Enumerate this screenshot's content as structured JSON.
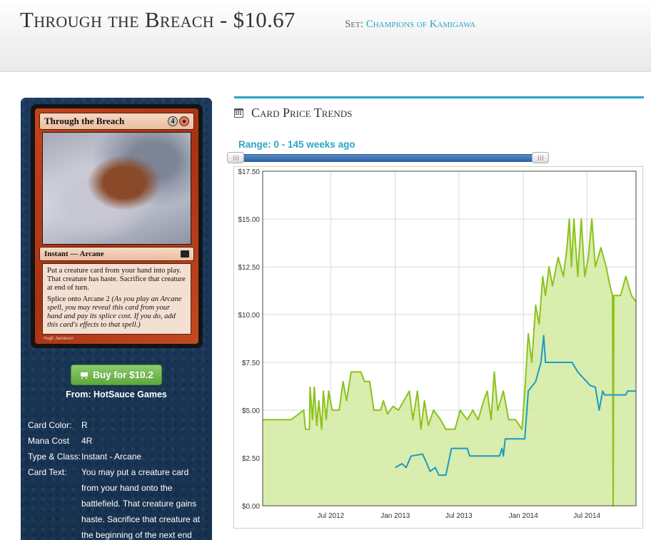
{
  "header": {
    "title": "Through the Breach - $10.67",
    "set_label": "Set:",
    "set_name": "Champions of Kamigawa"
  },
  "card": {
    "name": "Through the Breach",
    "mana_generic": "4",
    "mana_symbol": "red-mana-icon",
    "type_line": "Instant — Arcane",
    "rules_1": "Put a creature card from your hand into play. That creature has haste. Sacrifice that creature at end of turn.",
    "splice_label": "Splice onto Arcane",
    "splice_cost": "2",
    "reminder": "(As you play an Arcane spell, you may reveal this card from your hand and pay its splice cost. If you do, add this card's effects to that spell.)",
    "artist": "Hugh Jamieson"
  },
  "buy": {
    "label": "Buy for $10.2",
    "icon": "cart-icon",
    "vendor": "From: HotSauce Games"
  },
  "details": [
    {
      "label": "Card Color:",
      "value": "R"
    },
    {
      "label": "Mana Cost",
      "value": "4R"
    },
    {
      "label": "Type & Class:",
      "value": "Instant - Arcane"
    },
    {
      "label": "Card Text:",
      "value": "You may put a creature card from your hand onto the battlefield. That creature gains haste. Sacrifice that creature at the beginning of the next end"
    }
  ],
  "trends": {
    "title": "Card Price Trends",
    "icon": "calendar-icon",
    "range_label": "Range: 0 - 145 weeks ago"
  },
  "colors": {
    "accent": "#29a2c4",
    "green_series": "#8cc21c",
    "green_fill": "#d2eaa0",
    "blue_series": "#1b9bc4"
  },
  "chart_data": {
    "type": "area",
    "y_ticks": [
      "$0.00",
      "$2.50",
      "$5.00",
      "$7.50",
      "$10.00",
      "$12.50",
      "$15.00",
      "$17.50"
    ],
    "x_ticks": [
      "Jul 2012",
      "Jan 2013",
      "Jul 2013",
      "Jan 2014",
      "Jul 2014"
    ],
    "x_tick_dates": [
      "2012-07-01",
      "2013-01-01",
      "2013-07-01",
      "2014-01-01",
      "2014-07-01"
    ],
    "ylim": [
      0,
      17.5
    ],
    "xlim": [
      "2011-12-20",
      "2014-11-18"
    ],
    "grid": true,
    "series": [
      {
        "color": "#8cc21c",
        "fill": "#d2eaa0",
        "points": [
          [
            "2011-12-20",
            4.5
          ],
          [
            "2012-03-10",
            4.5
          ],
          [
            "2012-04-15",
            5.0
          ],
          [
            "2012-04-20",
            4.0
          ],
          [
            "2012-05-01",
            4.0
          ],
          [
            "2012-05-03",
            6.2
          ],
          [
            "2012-05-10",
            4.5
          ],
          [
            "2012-05-15",
            6.2
          ],
          [
            "2012-05-22",
            4.2
          ],
          [
            "2012-05-28",
            5.5
          ],
          [
            "2012-06-05",
            4.0
          ],
          [
            "2012-06-10",
            6.0
          ],
          [
            "2012-06-18",
            4.5
          ],
          [
            "2012-06-25",
            6.0
          ],
          [
            "2012-07-05",
            5.0
          ],
          [
            "2012-07-25",
            5.0
          ],
          [
            "2012-08-05",
            6.5
          ],
          [
            "2012-08-15",
            5.5
          ],
          [
            "2012-08-28",
            7.0
          ],
          [
            "2012-09-25",
            7.0
          ],
          [
            "2012-10-05",
            6.5
          ],
          [
            "2012-10-20",
            6.5
          ],
          [
            "2012-11-01",
            5.0
          ],
          [
            "2012-11-20",
            5.0
          ],
          [
            "2012-11-28",
            5.5
          ],
          [
            "2012-12-10",
            4.8
          ],
          [
            "2012-12-25",
            5.2
          ],
          [
            "2013-01-10",
            5.0
          ],
          [
            "2013-02-10",
            6.0
          ],
          [
            "2013-02-20",
            4.5
          ],
          [
            "2013-03-05",
            6.0
          ],
          [
            "2013-03-15",
            4.0
          ],
          [
            "2013-03-25",
            5.5
          ],
          [
            "2013-04-05",
            4.2
          ],
          [
            "2013-04-20",
            5.0
          ],
          [
            "2013-05-10",
            4.5
          ],
          [
            "2013-05-25",
            4.0
          ],
          [
            "2013-06-20",
            4.0
          ],
          [
            "2013-07-05",
            5.0
          ],
          [
            "2013-07-25",
            4.5
          ],
          [
            "2013-08-10",
            5.0
          ],
          [
            "2013-08-25",
            4.5
          ],
          [
            "2013-09-10",
            5.5
          ],
          [
            "2013-09-20",
            6.0
          ],
          [
            "2013-10-01",
            4.5
          ],
          [
            "2013-10-10",
            7.0
          ],
          [
            "2013-10-20",
            5.0
          ],
          [
            "2013-11-05",
            6.0
          ],
          [
            "2013-11-20",
            4.5
          ],
          [
            "2013-12-10",
            4.5
          ],
          [
            "2013-12-28",
            4.0
          ],
          [
            "2014-01-05",
            6.0
          ],
          [
            "2014-01-15",
            9.0
          ],
          [
            "2014-01-25",
            7.5
          ],
          [
            "2014-02-05",
            10.5
          ],
          [
            "2014-02-15",
            9.5
          ],
          [
            "2014-02-25",
            12.0
          ],
          [
            "2014-03-05",
            11.0
          ],
          [
            "2014-03-15",
            12.5
          ],
          [
            "2014-03-25",
            11.5
          ],
          [
            "2014-04-10",
            13.0
          ],
          [
            "2014-04-25",
            12.0
          ],
          [
            "2014-05-05",
            13.5
          ],
          [
            "2014-05-12",
            15.0
          ],
          [
            "2014-05-18",
            12.5
          ],
          [
            "2014-05-25",
            15.0
          ],
          [
            "2014-06-05",
            12.0
          ],
          [
            "2014-06-15",
            15.0
          ],
          [
            "2014-06-25",
            12.0
          ],
          [
            "2014-07-05",
            13.0
          ],
          [
            "2014-07-15",
            15.0
          ],
          [
            "2014-07-25",
            12.5
          ],
          [
            "2014-08-10",
            13.5
          ],
          [
            "2014-08-25",
            12.5
          ],
          [
            "2014-09-05",
            11.5
          ],
          [
            "2014-09-12",
            11.0
          ],
          [
            "2014-09-14",
            0.0
          ],
          [
            "2014-09-16",
            11.0
          ],
          [
            "2014-10-05",
            11.0
          ],
          [
            "2014-10-20",
            12.0
          ],
          [
            "2014-11-05",
            11.0
          ],
          [
            "2014-11-18",
            10.67
          ]
        ]
      },
      {
        "color": "#1b9bc4",
        "points": [
          [
            "2013-01-01",
            2.0
          ],
          [
            "2013-01-20",
            2.2
          ],
          [
            "2013-02-01",
            2.0
          ],
          [
            "2013-02-15",
            2.6
          ],
          [
            "2013-03-20",
            2.7
          ],
          [
            "2013-04-01",
            2.2
          ],
          [
            "2013-04-10",
            1.8
          ],
          [
            "2013-04-25",
            2.0
          ],
          [
            "2013-05-05",
            1.6
          ],
          [
            "2013-05-25",
            1.6
          ],
          [
            "2013-06-01",
            2.2
          ],
          [
            "2013-06-10",
            3.0
          ],
          [
            "2013-07-25",
            3.0
          ],
          [
            "2013-08-01",
            2.6
          ],
          [
            "2013-10-25",
            2.6
          ],
          [
            "2013-11-01",
            3.0
          ],
          [
            "2013-11-05",
            2.6
          ],
          [
            "2013-11-10",
            3.5
          ],
          [
            "2014-01-05",
            3.5
          ],
          [
            "2014-01-15",
            6.0
          ],
          [
            "2014-02-05",
            6.5
          ],
          [
            "2014-02-20",
            7.5
          ],
          [
            "2014-02-28",
            8.9
          ],
          [
            "2014-03-05",
            7.5
          ],
          [
            "2014-05-20",
            7.5
          ],
          [
            "2014-06-05",
            7.0
          ],
          [
            "2014-07-10",
            6.3
          ],
          [
            "2014-07-25",
            6.2
          ],
          [
            "2014-08-05",
            5.0
          ],
          [
            "2014-08-15",
            6.0
          ],
          [
            "2014-08-20",
            5.8
          ],
          [
            "2014-10-20",
            5.8
          ],
          [
            "2014-10-25",
            6.0
          ],
          [
            "2014-11-18",
            6.0
          ]
        ]
      }
    ]
  }
}
